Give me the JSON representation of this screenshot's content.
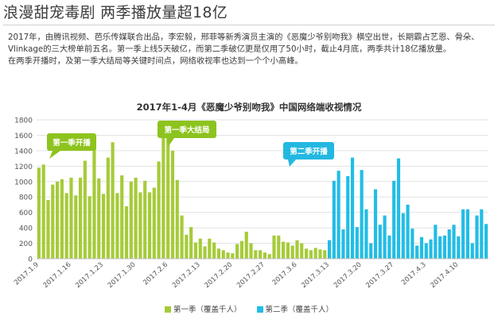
{
  "page": {
    "title": "浪漫甜宠毒剧 两季播放量超18亿",
    "paragraph1": "2017年，由腾讯视频、芭乐传媒联合出品，李宏毅，邢菲等新秀演员主演的《恶魔少爷别吻我》横空出世，长期霸占艺恩、骨朵、Vlinkage的三大榜单前五名。第一季上线5天破亿，而第二季破亿更是仅用了50小时，截止4月底，两季共计18亿播放量。",
    "paragraph2": "在两季开播时，及第一季大结局等关键时间点，网络收视率也达到一个个小高峰。"
  },
  "colors": {
    "season1": "#a6cb39",
    "season2": "#22bde6",
    "callout": "#8dc31e",
    "callout2": "#23b8e0",
    "grid": "#e2e2e2",
    "axis_text": "#555555"
  },
  "chart_data": {
    "type": "bar",
    "title": "2017年1-4月《恶魔少爷别吻我》中国网络端收视情况",
    "ylim": [
      0,
      1800
    ],
    "yticks": [
      0,
      200,
      400,
      600,
      800,
      1000,
      1200,
      1400,
      1600,
      1800
    ],
    "x_ticks": [
      "2017.1.9",
      "2017.1.16",
      "2017.1.23",
      "2017.1.30",
      "2017.2.6",
      "2017.2.13",
      "2017.2.20",
      "2017.2.27",
      "2017.3.6",
      "2017.3.13",
      "2017.3.20",
      "2017.3.27",
      "2017.4.3",
      "2017.4.10"
    ],
    "grid": true,
    "legend_position": "bottom",
    "series": [
      {
        "name": "第一季（覆盖千人）",
        "values": [
          1180,
          1220,
          760,
          960,
          1000,
          1030,
          850,
          1050,
          820,
          1050,
          1270,
          810,
          1450,
          1040,
          840,
          1310,
          1510,
          850,
          1080,
          680,
          1000,
          1050,
          860,
          1010,
          860,
          920,
          1260,
          1680,
          1540,
          1400,
          1020,
          560,
          310,
          410,
          210,
          260,
          160,
          260,
          210,
          130,
          110,
          80,
          70,
          190,
          230,
          350,
          200,
          110,
          110,
          80,
          60,
          300,
          300,
          220,
          210,
          170,
          240,
          200,
          130,
          110,
          140,
          120,
          110,
          100,
          80,
          90,
          80,
          70,
          90,
          80,
          70,
          60,
          60,
          60,
          70,
          80,
          60,
          60,
          60,
          90,
          80,
          70,
          60,
          70,
          70,
          60,
          60,
          60,
          70,
          60,
          60,
          70,
          60,
          60,
          60,
          60,
          80,
          60
        ]
      },
      {
        "name": "第二季（覆盖千人）",
        "values": [
          0,
          0,
          0,
          0,
          0,
          0,
          0,
          0,
          0,
          0,
          0,
          0,
          0,
          0,
          0,
          0,
          0,
          0,
          0,
          0,
          0,
          0,
          0,
          0,
          0,
          0,
          0,
          0,
          0,
          0,
          0,
          0,
          0,
          0,
          0,
          0,
          0,
          0,
          0,
          0,
          0,
          0,
          0,
          0,
          0,
          0,
          0,
          0,
          0,
          0,
          0,
          0,
          0,
          0,
          0,
          0,
          0,
          0,
          0,
          0,
          0,
          0,
          0,
          240,
          1010,
          1140,
          380,
          1070,
          1310,
          410,
          1150,
          640,
          200,
          900,
          440,
          560,
          300,
          1010,
          1300,
          590,
          700,
          390,
          170,
          280,
          200,
          250,
          440,
          290,
          300,
          380,
          440,
          290,
          640,
          640,
          200,
          560,
          640,
          450
        ]
      }
    ],
    "callouts": [
      {
        "label": "第一季开播"
      },
      {
        "label": "第一季大结局"
      },
      {
        "label": "第二季开播"
      }
    ]
  }
}
